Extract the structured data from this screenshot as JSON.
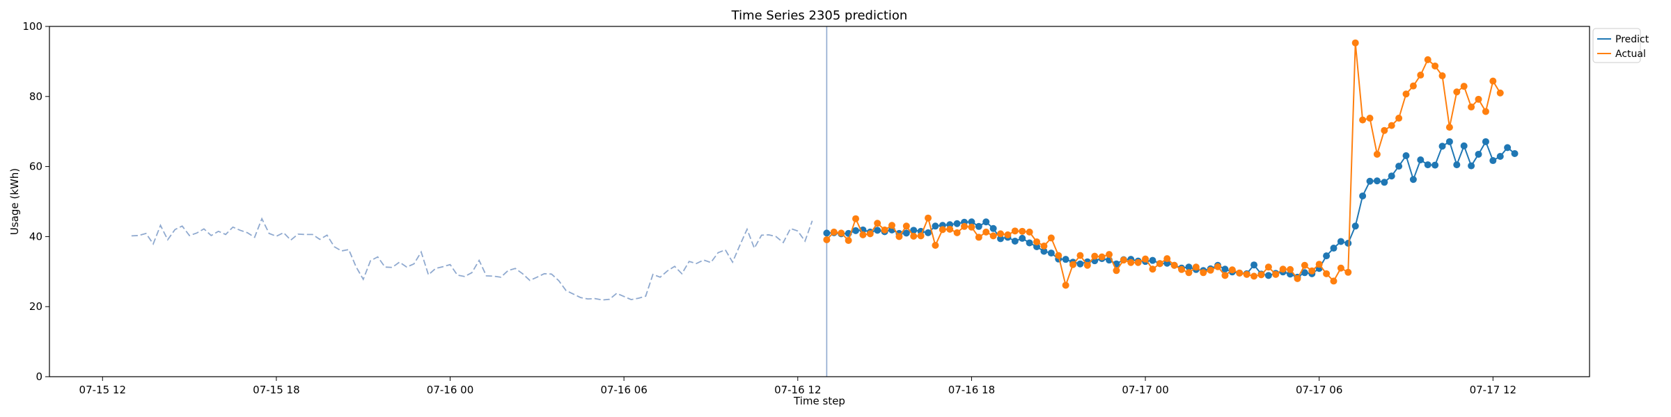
{
  "chart_data": {
    "type": "line",
    "title": "Time Series 2305 prediction",
    "xlabel": "Time step",
    "ylabel": "Usage (kWh)",
    "ylim": [
      0,
      100
    ],
    "xlim": [
      "2024-07-15T10:10",
      "2024-07-17T15:20"
    ],
    "yticks": [
      "0",
      "20",
      "40",
      "60",
      "80",
      "100"
    ],
    "xticks": [
      {
        "t": "2024-07-15T12:00",
        "label": "07-15 12"
      },
      {
        "t": "2024-07-15T18:00",
        "label": "07-15 18"
      },
      {
        "t": "2024-07-16T00:00",
        "label": "07-16 00"
      },
      {
        "t": "2024-07-16T06:00",
        "label": "07-16 06"
      },
      {
        "t": "2024-07-16T12:00",
        "label": "07-16 12"
      },
      {
        "t": "2024-07-16T18:00",
        "label": "07-16 18"
      },
      {
        "t": "2024-07-17T00:00",
        "label": "07-17 00"
      },
      {
        "t": "2024-07-17T06:00",
        "label": "07-17 06"
      },
      {
        "t": "2024-07-17T12:00",
        "label": "07-17 12"
      }
    ],
    "history_start": "2024-07-15T13:00",
    "forecast_start": "2024-07-16T13:00",
    "step_minutes": 15,
    "history_values": [
      40.2,
      40.3,
      40.9,
      37.9,
      43.2,
      39.1,
      42.0,
      43.0,
      40.3,
      41.0,
      42.2,
      40.3,
      41.5,
      40.6,
      42.7,
      41.8,
      41.1,
      39.8,
      45.1,
      40.9,
      40.1,
      41.1,
      39.0,
      40.7,
      40.6,
      40.6,
      39.2,
      40.4,
      37.1,
      35.9,
      36.3,
      31.4,
      27.8,
      33.1,
      34.2,
      31.3,
      31.2,
      32.7,
      31.3,
      32.2,
      35.6,
      29.1,
      30.9,
      31.4,
      32.0,
      29.0,
      28.6,
      29.7,
      33.2,
      28.8,
      28.7,
      28.4,
      30.3,
      30.9,
      29.4,
      27.5,
      28.4,
      29.4,
      29.3,
      27.4,
      24.6,
      23.6,
      22.6,
      22.2,
      22.3,
      21.9,
      22.1,
      23.8,
      22.9,
      22.0,
      22.4,
      23.0,
      29.2,
      28.4,
      30.2,
      31.5,
      29.4,
      32.9,
      32.3,
      33.3,
      32.6,
      35.4,
      36.2,
      32.7,
      37.5,
      42.1,
      36.7,
      40.4,
      40.5,
      40.0,
      38.3,
      42.3,
      41.6,
      38.7,
      44.5
    ],
    "legend_position": "upper right, outside",
    "series": [
      {
        "name": "Predict",
        "color": "#1f77b4",
        "values": [
          41.0,
          41.1,
          40.8,
          40.9,
          41.7,
          41.9,
          41.3,
          41.8,
          41.4,
          41.9,
          40.9,
          41.0,
          41.8,
          41.5,
          41.1,
          43.0,
          43.2,
          43.4,
          43.7,
          44.1,
          44.2,
          42.9,
          44.2,
          42.3,
          39.4,
          39.8,
          38.7,
          39.5,
          38.2,
          37.1,
          35.8,
          35.3,
          33.6,
          33.5,
          32.7,
          32.2,
          32.8,
          33.1,
          33.7,
          33.3,
          32.2,
          33.4,
          33.5,
          33.0,
          32.9,
          33.2,
          32.3,
          32.4,
          31.8,
          31.0,
          31.3,
          30.6,
          30.3,
          30.8,
          31.8,
          30.7,
          29.9,
          29.6,
          29.4,
          31.9,
          29.3,
          28.9,
          29.5,
          29.9,
          29.3,
          28.4,
          29.7,
          29.4,
          30.9,
          34.5,
          36.7,
          38.6,
          38.1,
          43.0,
          51.6,
          55.8,
          55.9,
          55.5,
          57.3,
          60.1,
          63.1,
          56.3,
          61.9,
          60.5,
          60.4,
          65.8,
          67.1,
          60.5,
          65.9,
          60.2,
          63.5,
          67.1,
          61.7,
          62.9,
          65.4,
          63.7
        ]
      },
      {
        "name": "Actual",
        "color": "#ff7f0e",
        "values": [
          39.1,
          41.3,
          41.0,
          38.9,
          45.1,
          40.5,
          40.8,
          43.8,
          41.9,
          43.2,
          40.0,
          43.0,
          40.1,
          40.2,
          45.3,
          37.5,
          42.0,
          42.1,
          41.1,
          42.9,
          42.7,
          39.8,
          41.3,
          40.2,
          40.8,
          40.5,
          41.6,
          41.5,
          41.3,
          38.5,
          37.3,
          39.6,
          34.6,
          26.1,
          32.0,
          34.6,
          31.8,
          34.4,
          34.2,
          34.9,
          30.3,
          33.3,
          32.6,
          32.6,
          33.6,
          30.7,
          32.3,
          33.7,
          31.8,
          30.6,
          29.7,
          31.3,
          29.7,
          30.4,
          31.4,
          28.9,
          30.5,
          29.6,
          29.2,
          28.7,
          29.1,
          31.3,
          29.2,
          30.7,
          30.6,
          28.0,
          31.8,
          30.2,
          32.1,
          29.4,
          27.3,
          31.0,
          29.8,
          95.3,
          73.3,
          73.8,
          63.5,
          70.3,
          71.7,
          73.8,
          80.7,
          83.0,
          86.1,
          90.5,
          88.7,
          85.9,
          71.2,
          81.3,
          82.9,
          77.0,
          79.2,
          75.7,
          84.4,
          81.0
        ]
      }
    ]
  }
}
